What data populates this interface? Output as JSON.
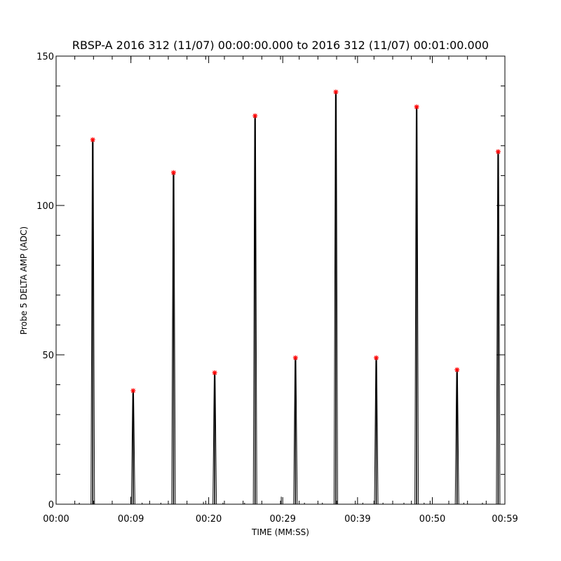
{
  "chart_data": {
    "type": "line",
    "title": "RBSP-A 2016 312 (11/07) 00:00:00.000 to 2016 312 (11/07) 00:01:00.000",
    "xlabel": "TIME (MM:SS)",
    "ylabel": "Probe 5 DELTA AMP (ADC)",
    "xlim": [
      0,
      60
    ],
    "ylim": [
      0,
      150
    ],
    "x_ticks": [
      {
        "value": 0,
        "label": "00:00"
      },
      {
        "value": 10,
        "label": "00:09"
      },
      {
        "value": 20.4,
        "label": "00:20"
      },
      {
        "value": 30.3,
        "label": "00:29"
      },
      {
        "value": 40.3,
        "label": "00:39"
      },
      {
        "value": 50.3,
        "label": "00:50"
      },
      {
        "value": 60,
        "label": "00:59"
      }
    ],
    "y_ticks": [
      {
        "value": 0,
        "label": "0"
      },
      {
        "value": 50,
        "label": "50"
      },
      {
        "value": 100,
        "label": "100"
      },
      {
        "value": 150,
        "label": "150"
      }
    ],
    "y_minor_step": 10,
    "x_minor_step": 2.5,
    "grid": false,
    "line_color": "#000000",
    "marker_color": "#ff0000",
    "series": [
      {
        "peaks": [
          {
            "x": 4.9,
            "y": 122
          },
          {
            "x": 10.3,
            "y": 38
          },
          {
            "x": 15.7,
            "y": 111
          },
          {
            "x": 21.2,
            "y": 44
          },
          {
            "x": 26.6,
            "y": 130
          },
          {
            "x": 32.0,
            "y": 49
          },
          {
            "x": 37.4,
            "y": 138
          },
          {
            "x": 42.8,
            "y": 49
          },
          {
            "x": 48.2,
            "y": 133
          },
          {
            "x": 53.6,
            "y": 45
          },
          {
            "x": 59.1,
            "y": 118
          }
        ]
      }
    ],
    "noise_blips": [
      {
        "x": 3.1,
        "y": 0.5
      },
      {
        "x": 10.0,
        "y": 2.5
      },
      {
        "x": 11.5,
        "y": 0.5
      },
      {
        "x": 14.0,
        "y": 0.5
      },
      {
        "x": 19.7,
        "y": 0.8
      },
      {
        "x": 22.3,
        "y": 0.5
      },
      {
        "x": 25.2,
        "y": 0.5
      },
      {
        "x": 30.1,
        "y": 2.5
      },
      {
        "x": 33.2,
        "y": 0.5
      },
      {
        "x": 35.6,
        "y": 0.5
      },
      {
        "x": 41.0,
        "y": 0.5
      },
      {
        "x": 43.7,
        "y": 0.5
      },
      {
        "x": 46.5,
        "y": 0.5
      },
      {
        "x": 49.2,
        "y": 0.5
      },
      {
        "x": 54.5,
        "y": 0.5
      },
      {
        "x": 57.0,
        "y": 0.5
      }
    ]
  }
}
